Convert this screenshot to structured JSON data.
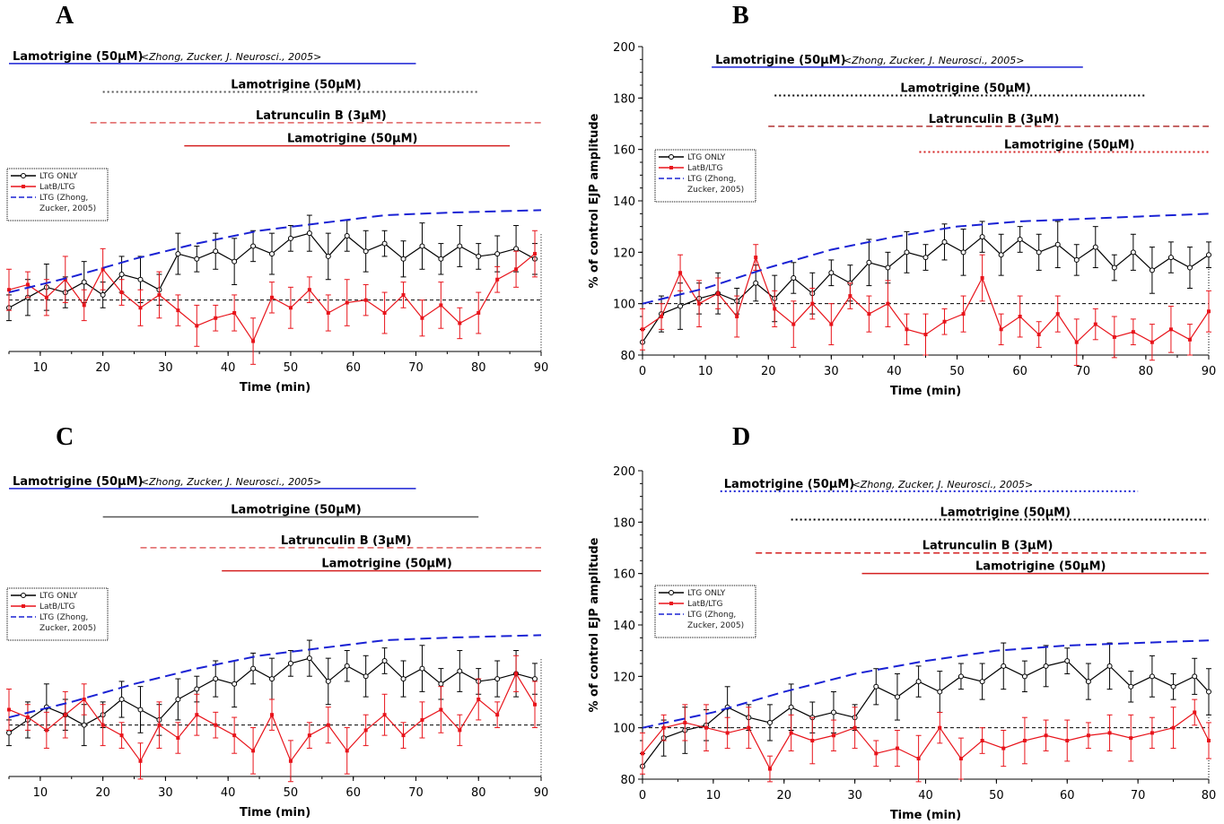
{
  "panels": [
    {
      "label": "A",
      "legend": [
        "LTG ONLY",
        "LatB/LTG",
        "LTG (Zhong,",
        "Zucker, 2005)"
      ]
    },
    {
      "label": "B",
      "legend": [
        "LTG ONLY",
        "LatB/LTG",
        "LTG (Zhong,",
        "Zucker, 2005)"
      ]
    },
    {
      "label": "C",
      "legend": [
        "LTG ONLY",
        "LatB/LTG",
        "LTG (Zhong,",
        "Zucker, 2005)"
      ]
    },
    {
      "label": "D",
      "legend": [
        "LTG ONLY",
        "LatB/LTG",
        "LTG (Zhong,",
        "Zucker, 2005)"
      ]
    }
  ],
  "colors": {
    "ltg_only": "#000000",
    "latb_ltg": "#e8141b",
    "zhong_fit": "#1a22d4",
    "latb_bar": "#e06060",
    "ltg_bar_red": "#d42020",
    "baseline": "#000000"
  },
  "chart_data": [
    {
      "panel": "A",
      "type": "line",
      "xlabel": "Time (min)",
      "ylabel": "",
      "xlim": [
        5,
        90
      ],
      "ylim": [
        80,
        200
      ],
      "xticks": [
        10,
        20,
        30,
        40,
        50,
        60,
        70,
        80,
        90
      ],
      "yticks": [],
      "drug_bars": [
        {
          "label": "Lamotrigine (50µM)",
          "ref": "<Zhong, Zucker, J. Neurosci., 2005>",
          "x_start": 5,
          "x_end": 70,
          "y": 192,
          "color": "#1a22d4",
          "style": "solid"
        },
        {
          "label": "Lamotrigine (50µM)",
          "x_start": 20,
          "x_end": 80,
          "y": 181,
          "color": "#555555",
          "style": "dotted"
        },
        {
          "label": "Latrunculin B (3µM)",
          "x_start": 18,
          "x_end": 90,
          "y": 169,
          "color": "#e06060",
          "style": "dashed"
        },
        {
          "label": "Lamotrigine (50µM)",
          "x_start": 33,
          "x_end": 85,
          "y": 160,
          "color": "#d42020",
          "style": "solid"
        }
      ],
      "series": [
        {
          "name": "LTG ONLY",
          "color": "#000000",
          "x": [
            5,
            8,
            11,
            14,
            17,
            20,
            23,
            26,
            29,
            32,
            35,
            38,
            41,
            44,
            47,
            50,
            53,
            56,
            59,
            62,
            65,
            68,
            71,
            74,
            77,
            80,
            83,
            86,
            89
          ],
          "y": [
            97,
            101,
            105,
            103,
            107,
            102,
            110,
            108,
            104,
            118,
            116,
            119,
            115,
            121,
            118,
            124,
            126,
            117,
            125,
            119,
            122,
            116,
            121,
            116,
            121,
            117,
            118,
            120,
            116
          ]
        },
        {
          "name": "LatB/LTG",
          "color": "#e8141b",
          "x": [
            5,
            8,
            11,
            14,
            17,
            20,
            23,
            26,
            29,
            32,
            35,
            38,
            41,
            44,
            47,
            50,
            53,
            56,
            59,
            62,
            65,
            68,
            71,
            74,
            77,
            80,
            83,
            86,
            89
          ],
          "y": [
            104,
            106,
            101,
            108,
            98,
            112,
            103,
            97,
            102,
            96,
            90,
            93,
            95,
            84,
            101,
            97,
            104,
            95,
            99,
            100,
            95,
            102,
            93,
            98,
            91,
            95,
            108,
            112,
            118
          ]
        },
        {
          "name": "LTG (Zhong, Zucker, 2005)",
          "color": "#1a22d4",
          "x": [
            5,
            15,
            25,
            35,
            45,
            55,
            65,
            75,
            90
          ],
          "y": [
            103,
            109,
            116,
            122,
            127,
            130,
            133,
            134,
            135
          ]
        }
      ],
      "baseline": 100
    },
    {
      "panel": "B",
      "type": "line",
      "xlabel": "Time (min)",
      "ylabel": "% of control EJP amplitude",
      "xlim": [
        0,
        90
      ],
      "ylim": [
        80,
        200
      ],
      "xticks": [
        0,
        10,
        20,
        30,
        40,
        50,
        60,
        70,
        80,
        90
      ],
      "yticks": [
        80,
        100,
        120,
        140,
        160,
        180,
        200
      ],
      "drug_bars": [
        {
          "label": "Lamotrigine (50µM)",
          "ref": "<Zhong, Zucker, J. Neurosci., 2005>",
          "x_start": 11,
          "x_end": 70,
          "y": 192,
          "color": "#1a22d4",
          "style": "solid"
        },
        {
          "label": "Lamotrigine (50µM)",
          "x_start": 21,
          "x_end": 80,
          "y": 181,
          "color": "#000000",
          "style": "dotted"
        },
        {
          "label": "Latrunculin B (3µM)",
          "x_start": 20,
          "x_end": 90,
          "y": 169,
          "color": "#b03030",
          "style": "dashed"
        },
        {
          "label": "Lamotrigine (50µM)",
          "x_start": 44,
          "x_end": 90,
          "y": 159,
          "color": "#d42020",
          "style": "dotted"
        }
      ],
      "series": [
        {
          "name": "LTG ONLY",
          "color": "#000000",
          "x": [
            0,
            3,
            6,
            9,
            12,
            15,
            18,
            21,
            24,
            27,
            30,
            33,
            36,
            39,
            42,
            45,
            48,
            51,
            54,
            57,
            60,
            63,
            66,
            69,
            72,
            75,
            78,
            81,
            84,
            87,
            90
          ],
          "y": [
            85,
            96,
            99,
            102,
            104,
            101,
            108,
            102,
            110,
            104,
            112,
            108,
            116,
            114,
            120,
            118,
            124,
            120,
            126,
            119,
            125,
            120,
            123,
            117,
            122,
            114,
            120,
            113,
            118,
            114,
            119
          ]
        },
        {
          "name": "LatB/LTG",
          "color": "#e8141b",
          "x": [
            0,
            3,
            6,
            9,
            12,
            15,
            18,
            21,
            24,
            27,
            30,
            33,
            36,
            39,
            42,
            45,
            48,
            51,
            54,
            57,
            60,
            63,
            66,
            69,
            72,
            75,
            78,
            81,
            84,
            87,
            90
          ],
          "y": [
            90,
            95,
            112,
            100,
            104,
            95,
            118,
            98,
            92,
            100,
            92,
            103,
            96,
            100,
            90,
            88,
            93,
            96,
            110,
            90,
            95,
            88,
            96,
            85,
            92,
            87,
            89,
            85,
            90,
            86,
            97
          ]
        },
        {
          "name": "LTG (Zhong, Zucker, 2005)",
          "color": "#1a22d4",
          "x": [
            0,
            10,
            20,
            30,
            40,
            50,
            60,
            70,
            80,
            90
          ],
          "y": [
            100,
            106,
            114,
            121,
            126,
            130,
            132,
            133,
            134,
            135
          ]
        }
      ],
      "baseline": 100
    },
    {
      "panel": "C",
      "type": "line",
      "xlabel": "Time (min)",
      "ylabel": "",
      "xlim": [
        5,
        90
      ],
      "ylim": [
        80,
        200
      ],
      "xticks": [
        10,
        20,
        30,
        40,
        50,
        60,
        70,
        80,
        90
      ],
      "yticks": [],
      "drug_bars": [
        {
          "label": "Lamotrigine (50µM)",
          "ref": "<Zhong, Zucker, J. Neurosci., 2005>",
          "x_start": 5,
          "x_end": 70,
          "y": 192,
          "color": "#1a22d4",
          "style": "solid"
        },
        {
          "label": "Lamotrigine (50µM)",
          "x_start": 20,
          "x_end": 80,
          "y": 181,
          "color": "#555555",
          "style": "solid"
        },
        {
          "label": "Latrunculin B (3µM)",
          "x_start": 26,
          "x_end": 90,
          "y": 169,
          "color": "#e06060",
          "style": "dashed"
        },
        {
          "label": "Lamotrigine (50µM)",
          "x_start": 39,
          "x_end": 90,
          "y": 160,
          "color": "#d42020",
          "style": "solid"
        }
      ],
      "series": [
        {
          "name": "LTG ONLY",
          "color": "#000000",
          "x": [
            5,
            8,
            11,
            14,
            17,
            20,
            23,
            26,
            29,
            32,
            35,
            38,
            41,
            44,
            47,
            50,
            53,
            56,
            59,
            62,
            65,
            68,
            71,
            74,
            77,
            80,
            83,
            86,
            89
          ],
          "y": [
            97,
            102,
            107,
            104,
            100,
            104,
            110,
            106,
            102,
            110,
            114,
            118,
            116,
            122,
            118,
            124,
            126,
            117,
            123,
            119,
            125,
            118,
            122,
            116,
            121,
            117,
            118,
            120,
            118
          ]
        },
        {
          "name": "LatB/LTG",
          "color": "#e8141b",
          "x": [
            5,
            8,
            11,
            14,
            17,
            20,
            23,
            26,
            29,
            32,
            35,
            38,
            41,
            44,
            47,
            50,
            53,
            56,
            59,
            62,
            65,
            68,
            71,
            74,
            77,
            80,
            83,
            86,
            89
          ],
          "y": [
            106,
            103,
            98,
            104,
            110,
            100,
            96,
            86,
            100,
            95,
            104,
            100,
            96,
            90,
            104,
            86,
            96,
            100,
            90,
            98,
            104,
            96,
            102,
            106,
            98,
            110,
            104,
            120,
            108
          ]
        },
        {
          "name": "LTG (Zhong, Zucker, 2005)",
          "color": "#1a22d4",
          "x": [
            5,
            15,
            25,
            35,
            45,
            55,
            65,
            75,
            90
          ],
          "y": [
            103,
            109,
            116,
            122,
            127,
            130,
            133,
            134,
            135
          ]
        }
      ],
      "baseline": 100
    },
    {
      "panel": "D",
      "type": "line",
      "xlabel": "Time (min)",
      "ylabel": "% of control EJP amplitude",
      "xlim": [
        0,
        80
      ],
      "ylim": [
        80,
        200
      ],
      "xticks": [
        0,
        10,
        20,
        30,
        40,
        50,
        60,
        70,
        80
      ],
      "yticks": [
        80,
        100,
        120,
        140,
        160,
        180,
        200
      ],
      "drug_bars": [
        {
          "label": "Lamotrigine (50µM)",
          "ref": "<Zhong, Zucker, J. Neurosci., 2005>",
          "x_start": 11,
          "x_end": 70,
          "y": 192,
          "color": "#1a22d4",
          "style": "dotted"
        },
        {
          "label": "Lamotrigine (50µM)",
          "x_start": 21,
          "x_end": 80,
          "y": 181,
          "color": "#000000",
          "style": "dotted"
        },
        {
          "label": "Latrunculin B (3µM)",
          "x_start": 16,
          "x_end": 80,
          "y": 168,
          "color": "#d42020",
          "style": "dashed"
        },
        {
          "label": "Lamotrigine (50µM)",
          "x_start": 31,
          "x_end": 80,
          "y": 160,
          "color": "#d42020",
          "style": "solid"
        }
      ],
      "series": [
        {
          "name": "LTG ONLY",
          "color": "#000000",
          "x": [
            0,
            3,
            6,
            9,
            12,
            15,
            18,
            21,
            24,
            27,
            30,
            33,
            36,
            39,
            42,
            45,
            48,
            51,
            54,
            57,
            60,
            63,
            66,
            69,
            72,
            75,
            78,
            80
          ],
          "y": [
            85,
            96,
            99,
            101,
            108,
            104,
            102,
            108,
            104,
            106,
            104,
            116,
            112,
            118,
            114,
            120,
            118,
            124,
            120,
            124,
            126,
            118,
            124,
            116,
            120,
            116,
            120,
            114
          ]
        },
        {
          "name": "LatB/LTG",
          "color": "#e8141b",
          "x": [
            0,
            3,
            6,
            9,
            12,
            15,
            18,
            21,
            24,
            27,
            30,
            33,
            36,
            39,
            42,
            45,
            48,
            51,
            54,
            57,
            60,
            63,
            66,
            69,
            72,
            75,
            78,
            80
          ],
          "y": [
            90,
            100,
            102,
            100,
            98,
            100,
            84,
            98,
            95,
            97,
            100,
            90,
            92,
            88,
            100,
            88,
            95,
            92,
            95,
            97,
            95,
            97,
            98,
            96,
            98,
            100,
            106,
            95
          ]
        },
        {
          "name": "LTG (Zhong, Zucker, 2005)",
          "color": "#1a22d4",
          "x": [
            0,
            10,
            20,
            30,
            40,
            50,
            60,
            70,
            80
          ],
          "y": [
            100,
            106,
            114,
            121,
            126,
            130,
            132,
            133,
            134
          ]
        }
      ],
      "baseline": 100
    }
  ]
}
